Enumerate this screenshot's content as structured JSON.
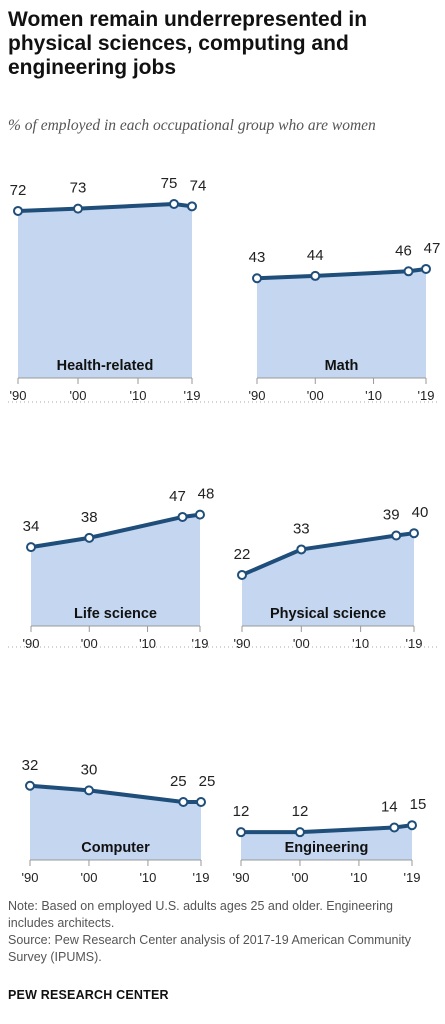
{
  "header": {
    "title": "Women remain underrepresented in physical sciences, computing and engineering jobs",
    "subtitle": "% of employed in each occupational group who are women"
  },
  "colors": {
    "line": "#1f4e7a",
    "fill": "#c4d6f0",
    "axis": "#999999"
  },
  "chart_data": [
    {
      "type": "area",
      "name": "Health-related",
      "x": [
        1990,
        2000,
        2016,
        2019
      ],
      "values": [
        72,
        73,
        75,
        74
      ],
      "x_ticks": [
        "'90",
        "'00",
        "'10",
        "'19"
      ],
      "ylim": [
        0,
        100
      ]
    },
    {
      "type": "area",
      "name": "Math",
      "x": [
        1990,
        2000,
        2016,
        2019
      ],
      "values": [
        43,
        44,
        46,
        47
      ],
      "x_ticks": [
        "'90",
        "'00",
        "'10",
        "'19"
      ],
      "ylim": [
        0,
        100
      ]
    },
    {
      "type": "area",
      "name": "Life science",
      "x": [
        1990,
        2000,
        2016,
        2019
      ],
      "values": [
        34,
        38,
        47,
        48
      ],
      "x_ticks": [
        "'90",
        "'00",
        "'10",
        "'19"
      ],
      "ylim": [
        0,
        100
      ]
    },
    {
      "type": "area",
      "name": "Physical science",
      "x": [
        1990,
        2000,
        2016,
        2019
      ],
      "values": [
        22,
        33,
        39,
        40
      ],
      "x_ticks": [
        "'90",
        "'00",
        "'10",
        "'19"
      ],
      "ylim": [
        0,
        100
      ]
    },
    {
      "type": "area",
      "name": "Computer",
      "x": [
        1990,
        2000,
        2016,
        2019
      ],
      "values": [
        32,
        30,
        25,
        25
      ],
      "x_ticks": [
        "'90",
        "'00",
        "'10",
        "'19"
      ],
      "ylim": [
        0,
        100
      ]
    },
    {
      "type": "area",
      "name": "Engineering",
      "x": [
        1990,
        2000,
        2016,
        2019
      ],
      "values": [
        12,
        12,
        14,
        15
      ],
      "x_ticks": [
        "'90",
        "'00",
        "'10",
        "'19"
      ],
      "ylim": [
        0,
        100
      ]
    }
  ],
  "notes": {
    "note": "Note: Based on employed U.S. adults ages 25 and older. Engineering includes architects.",
    "source": "Source: Pew Research Center analysis of 2017-19 American Community Survey (IPUMS)."
  },
  "logo": "PEW RESEARCH CENTER"
}
